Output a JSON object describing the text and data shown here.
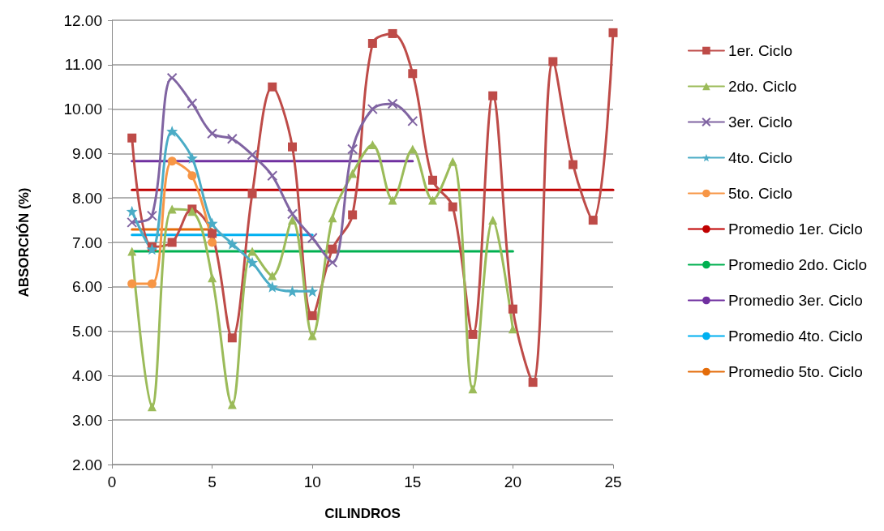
{
  "chart_data": {
    "type": "line",
    "xlabel": "CILINDROS",
    "ylabel": "ABSORCIÓN (%)",
    "xlim": [
      0,
      25
    ],
    "xticks": [
      0,
      5,
      10,
      15,
      20,
      25
    ],
    "ylim": [
      2,
      12
    ],
    "yticks": [
      {
        "value": 2,
        "label": "2.00"
      },
      {
        "value": 3,
        "label": "3.00"
      },
      {
        "value": 4,
        "label": "4.00"
      },
      {
        "value": 5,
        "label": "5.00"
      },
      {
        "value": 6,
        "label": "6.00"
      },
      {
        "value": 7,
        "label": "7.00"
      },
      {
        "value": 8,
        "label": "8.00"
      },
      {
        "value": 9,
        "label": "9.00"
      },
      {
        "value": 10,
        "label": "10.00"
      },
      {
        "value": 11,
        "label": "11.00"
      },
      {
        "value": 12,
        "label": "12.00"
      }
    ],
    "grid": "y",
    "legend": "right",
    "series": [
      {
        "name": "1er. Ciclo",
        "color": "#be4b48",
        "marker": "square",
        "x": [
          1,
          2,
          3,
          4,
          5,
          6,
          7,
          8,
          9,
          10,
          11,
          12,
          13,
          14,
          15,
          16,
          17,
          18,
          19,
          20,
          21,
          22,
          23,
          24,
          25
        ],
        "values": [
          9.35,
          6.9,
          7.0,
          7.75,
          7.2,
          4.85,
          8.1,
          10.5,
          9.15,
          5.35,
          6.85,
          7.62,
          11.48,
          11.7,
          10.8,
          8.4,
          7.8,
          4.93,
          10.3,
          5.5,
          3.85,
          11.07,
          8.75,
          7.5,
          11.72
        ]
      },
      {
        "name": "2do. Ciclo",
        "color": "#9bbb59",
        "marker": "triangle",
        "x": [
          1,
          2,
          3,
          4,
          5,
          6,
          7,
          8,
          9,
          10,
          11,
          12,
          13,
          14,
          15,
          16,
          17,
          18,
          19,
          20
        ],
        "values": [
          6.8,
          3.3,
          7.75,
          7.7,
          6.2,
          3.35,
          6.8,
          6.25,
          7.5,
          4.9,
          7.55,
          8.55,
          9.2,
          7.95,
          9.1,
          7.95,
          8.82,
          3.7,
          7.5,
          5.05
        ]
      },
      {
        "name": "3er. Ciclo",
        "color": "#8064a2",
        "marker": "cross",
        "x": [
          1,
          2,
          3,
          4,
          5,
          6,
          7,
          8,
          9,
          10,
          11,
          12,
          13,
          14,
          15
        ],
        "values": [
          7.45,
          7.6,
          10.7,
          10.13,
          9.45,
          9.33,
          8.97,
          8.5,
          7.64,
          7.1,
          6.55,
          9.1,
          10.0,
          10.12,
          9.73
        ]
      },
      {
        "name": "4to. Ciclo",
        "color": "#4bacc6",
        "marker": "star",
        "x": [
          1,
          2,
          3,
          4,
          5,
          6,
          7,
          8,
          9,
          10
        ],
        "values": [
          7.7,
          6.85,
          9.5,
          8.9,
          7.43,
          6.97,
          6.55,
          6.0,
          5.9,
          5.9
        ]
      },
      {
        "name": "5to. Ciclo",
        "color": "#f79646",
        "marker": "circle",
        "x": [
          1,
          2,
          3,
          4,
          5
        ],
        "values": [
          6.07,
          6.07,
          8.83,
          8.5,
          7.0
        ]
      },
      {
        "name": "Promedio 1er. Ciclo",
        "color": "#c00000",
        "marker": "none",
        "x": [
          1,
          25
        ],
        "values": [
          8.18,
          8.18
        ]
      },
      {
        "name": "Promedio 2do. Ciclo",
        "color": "#00b050",
        "marker": "none",
        "x": [
          1,
          20
        ],
        "values": [
          6.8,
          6.8
        ]
      },
      {
        "name": "Promedio 3er. Ciclo",
        "color": "#7030a0",
        "marker": "none",
        "x": [
          1,
          15
        ],
        "values": [
          8.83,
          8.83
        ]
      },
      {
        "name": "Promedio 4to. Ciclo",
        "color": "#00b0f0",
        "marker": "none",
        "x": [
          1,
          10
        ],
        "values": [
          7.17,
          7.17
        ]
      },
      {
        "name": "Promedio 5to. Ciclo",
        "color": "#e46c0a",
        "marker": "none",
        "x": [
          1,
          5
        ],
        "values": [
          7.29,
          7.29
        ]
      }
    ]
  }
}
